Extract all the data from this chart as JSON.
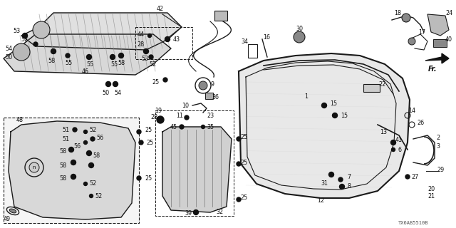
{
  "bg_color": "#ffffff",
  "diagram_code": "TX6AB5510B",
  "fig_width": 6.4,
  "fig_height": 3.2,
  "dpi": 100,
  "line_color": "#1a1a1a",
  "label_fontsize": 5.8
}
